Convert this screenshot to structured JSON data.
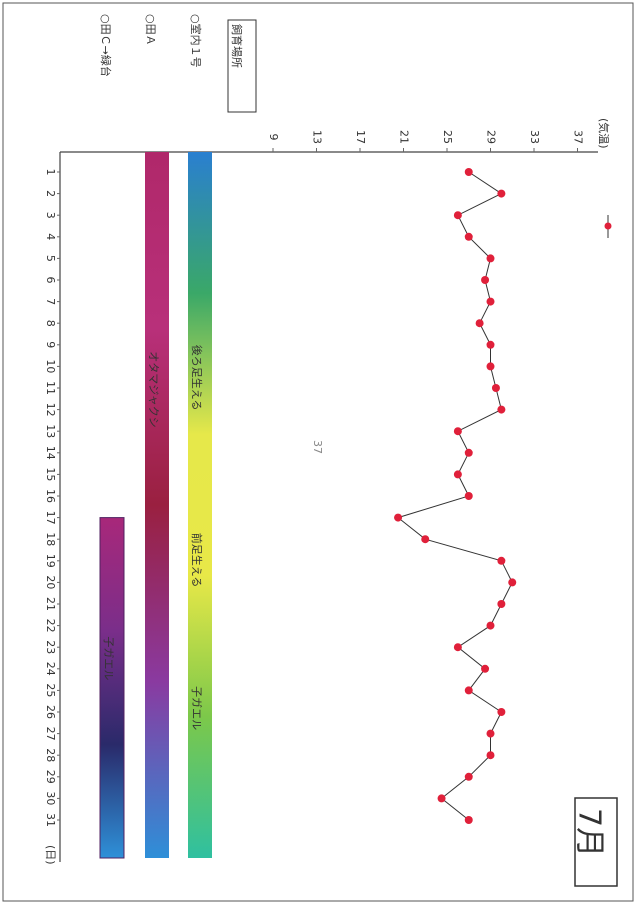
{
  "chart_data": {
    "type": "line",
    "title": "7月",
    "x_label": "(日)",
    "x": [
      1,
      2,
      3,
      4,
      5,
      6,
      7,
      8,
      9,
      10,
      11,
      12,
      13,
      14,
      15,
      16,
      17,
      18,
      19,
      20,
      21,
      22,
      23,
      24,
      25,
      26,
      27,
      28,
      29,
      30,
      31
    ],
    "xlim": [
      1,
      31
    ],
    "xticks": [
      1,
      2,
      3,
      4,
      5,
      6,
      7,
      8,
      9,
      10,
      11,
      12,
      13,
      14,
      15,
      16,
      17,
      18,
      19,
      20,
      21,
      22,
      23,
      24,
      25,
      26,
      27,
      28,
      29,
      30,
      31
    ],
    "ylim": [
      9,
      37
    ],
    "yticks": [
      9,
      13,
      17,
      21,
      25,
      29,
      33,
      37
    ],
    "series": [
      {
        "name": "(気温)",
        "color": "#e0203a",
        "values": [
          27,
          30,
          26,
          27,
          29,
          28.5,
          29,
          28,
          29,
          29,
          29.5,
          30,
          26,
          27,
          26,
          27,
          20.5,
          23,
          30,
          31,
          30,
          29,
          26,
          28.5,
          27,
          30,
          29,
          29,
          27,
          24.5,
          27
        ]
      }
    ],
    "bands": [
      {
        "from": 1,
        "to": 31,
        "colors": [
          "#2a7fd0",
          "#3aa868",
          "#e6e84a",
          "#e8e848",
          "#7cc84a",
          "#2fc0a0"
        ],
        "labels": [
          "後ろ足生える",
          "前足生える",
          "子ガエル"
        ]
      },
      {
        "from": 1,
        "to": 31,
        "colors": [
          "#b0286a",
          "#b8307a",
          "#9a2040",
          "#8a3aa0",
          "#2e8fd8"
        ],
        "labels": [
          "オタマジャクシ"
        ]
      },
      {
        "from": 17,
        "to": 31,
        "colors": [
          "#a8287a",
          "#7a2e8a",
          "#2a2a6a",
          "#2e90d8"
        ],
        "labels": [
          "子ガエル"
        ]
      }
    ]
  },
  "location_key": {
    "title": "飼育場所",
    "items": [
      "○室内１号",
      "○田Ａ",
      "○田Ｃ→緑台"
    ]
  },
  "page_number": "37"
}
